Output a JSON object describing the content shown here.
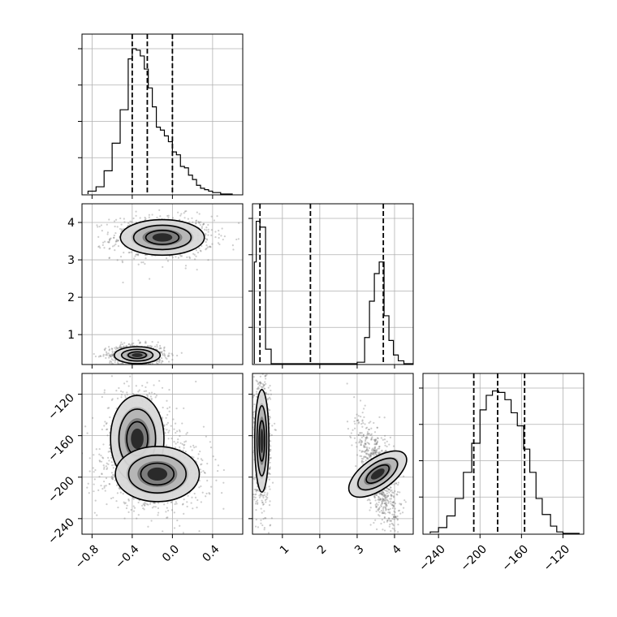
{
  "chart_data": {
    "type": "corner",
    "title": "",
    "parameters": [
      {
        "id": "p0",
        "label": "",
        "range": [
          -0.9,
          0.7
        ],
        "ticks": [
          -0.8,
          -0.4,
          0.0,
          0.4
        ],
        "tick_labels": [
          "−0.8",
          "−0.4",
          "0.0",
          "0.4"
        ]
      },
      {
        "id": "p1",
        "label": "",
        "range": [
          0.2,
          4.5
        ],
        "ticks": [
          1,
          2,
          3,
          4
        ],
        "tick_labels": [
          "1",
          "2",
          "3",
          "4"
        ]
      },
      {
        "id": "p2",
        "label": "",
        "range": [
          -255,
          -100
        ],
        "ticks": [
          -240,
          -200,
          -160,
          -120
        ],
        "tick_labels": [
          "−240",
          "−200",
          "−160",
          "−120"
        ]
      }
    ],
    "quantiles": {
      "p0": [
        -0.4,
        -0.25,
        0.0
      ],
      "p1": [
        0.4,
        1.75,
        3.7
      ],
      "p2": [
        -206,
        -183,
        -157
      ]
    },
    "histograms": {
      "p0": {
        "bin_edges": [
          -0.84,
          -0.76,
          -0.68,
          -0.6,
          -0.52,
          -0.44,
          -0.4,
          -0.36,
          -0.32,
          -0.28,
          -0.24,
          -0.2,
          -0.16,
          -0.12,
          -0.08,
          -0.04,
          0.0,
          0.04,
          0.08,
          0.12,
          0.16,
          0.2,
          0.24,
          0.28,
          0.32,
          0.36,
          0.4,
          0.44,
          0.48,
          0.52,
          0.6
        ],
        "counts": [
          0.02,
          0.05,
          0.16,
          0.35,
          0.58,
          0.93,
          1.0,
          0.99,
          0.95,
          0.86,
          0.73,
          0.6,
          0.46,
          0.44,
          0.4,
          0.36,
          0.29,
          0.27,
          0.19,
          0.18,
          0.13,
          0.1,
          0.06,
          0.04,
          0.03,
          0.02,
          0.01,
          0.01,
          0.0,
          0.0
        ]
      },
      "p1": {
        "bin_edges": [
          0.25,
          0.3,
          0.4,
          0.55,
          0.7,
          0.9,
          3.0,
          3.2,
          3.33,
          3.46,
          3.59,
          3.72,
          3.85,
          3.97,
          4.1,
          4.25,
          4.5
        ],
        "counts": [
          0.7,
          0.98,
          0.94,
          0.1,
          0.0,
          0.0,
          0.01,
          0.18,
          0.43,
          0.62,
          0.7,
          0.33,
          0.16,
          0.06,
          0.02,
          0.0
        ]
      },
      "p2": {
        "bin_edges": [
          -248,
          -240,
          -232,
          -224,
          -216,
          -208,
          -200,
          -194,
          -188,
          -182,
          -176,
          -170,
          -164,
          -158,
          -152,
          -146,
          -140,
          -132,
          -126,
          -120,
          -112,
          -104
        ],
        "counts": [
          0.01,
          0.04,
          0.12,
          0.24,
          0.42,
          0.62,
          0.85,
          0.95,
          0.98,
          0.97,
          0.92,
          0.83,
          0.74,
          0.58,
          0.42,
          0.24,
          0.13,
          0.05,
          0.01,
          0.0,
          0.0
        ]
      }
    },
    "pairs": [
      {
        "x": "p0",
        "y": "p1",
        "modes": [
          {
            "center": [
              -0.1,
              3.6
            ],
            "spread": [
              0.22,
              0.25
            ]
          },
          {
            "center": [
              -0.35,
              0.45
            ],
            "spread": [
              0.12,
              0.12
            ]
          }
        ]
      },
      {
        "x": "p0",
        "y": "p2",
        "modes": [
          {
            "center": [
              -0.35,
              -163
            ],
            "spread": [
              0.14,
              22
            ]
          },
          {
            "center": [
              -0.15,
              -197
            ],
            "spread": [
              0.22,
              14
            ]
          }
        ]
      },
      {
        "x": "p1",
        "y": "p2",
        "modes": [
          {
            "center": [
              0.45,
              -165
            ],
            "spread": [
              0.1,
              26
            ]
          },
          {
            "center": [
              3.55,
              -197
            ],
            "spread": [
              0.22,
              17
            ]
          }
        ]
      }
    ],
    "grid": true,
    "colors": {
      "line": "#000000",
      "grid": "#b0b0b0",
      "points": "#6f6f6f"
    }
  }
}
